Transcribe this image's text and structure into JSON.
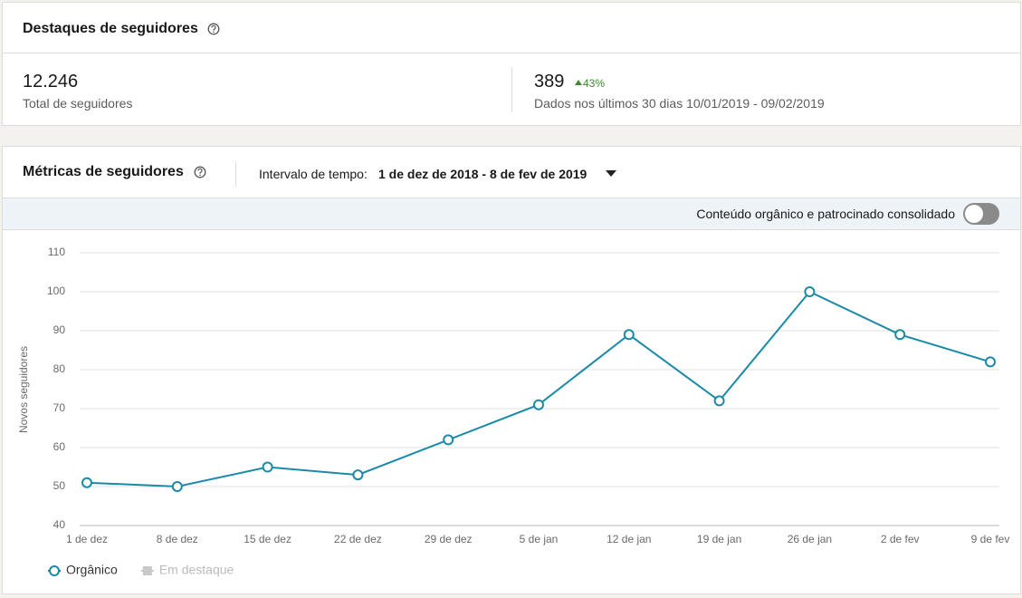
{
  "header": {
    "title": "Destaques de seguidores"
  },
  "stats": [
    {
      "value": "12.246",
      "label": "Total de seguidores"
    },
    {
      "value": "389",
      "change": "43%",
      "label": "Dados nos últimos 30 dias 10/01/2019 - 09/02/2019"
    }
  ],
  "metrics": {
    "title": "Métricas de seguidores",
    "interval_label": "Intervalo de tempo:",
    "interval_value": "1 de dez de 2018 - 8 de fev de 2019",
    "toggle_label": "Conteúdo orgânico e patrocinado consolidado"
  },
  "chart_data": {
    "type": "line",
    "y_label": "Novos seguidores",
    "categories": [
      "1 de dez",
      "8 de dez",
      "15 de dez",
      "22 de dez",
      "29 de dez",
      "5 de jan",
      "12 de jan",
      "19 de jan",
      "26 de jan",
      "2 de fev",
      "9 de fev"
    ],
    "series": [
      {
        "name": "Orgânico",
        "color": "#1a8aa8",
        "values": [
          51,
          50,
          55,
          53,
          62,
          71,
          89,
          72,
          100,
          89,
          82
        ]
      },
      {
        "name": "Em destaque",
        "color": "#c8c8c8",
        "values": [
          null,
          null,
          null,
          null,
          null,
          null,
          null,
          null,
          null,
          null,
          null
        ]
      }
    ],
    "ylim": [
      40,
      110
    ],
    "yticks": [
      40,
      50,
      60,
      70,
      80,
      90,
      100,
      110
    ],
    "grid": true,
    "legend": "bottom-left"
  }
}
